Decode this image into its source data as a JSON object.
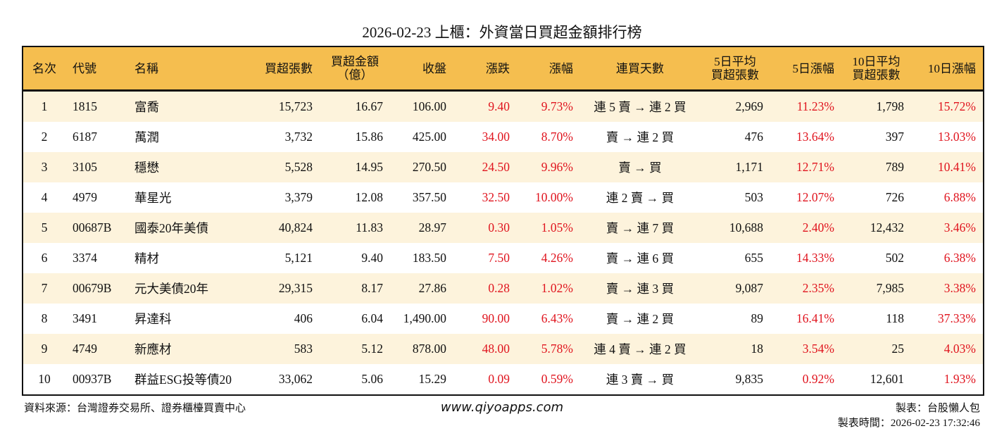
{
  "title": "2026-02-23 上櫃：外資當日買超金額排行榜",
  "colors": {
    "header_bg": "#F5BE4F",
    "row_alt_bg": "#FDF3DC",
    "positive": "#E0141E"
  },
  "headers": [
    "名次",
    "代號",
    "名稱",
    "買超張數",
    "買超金額\n（億）",
    "收盤",
    "漲跌",
    "漲幅",
    "連買天數",
    "5日平均\n買超張數",
    "5日漲幅",
    "10日平均\n買超張數",
    "10日漲幅"
  ],
  "rows": [
    [
      "1",
      "1815",
      "富喬",
      "15,723",
      "16.67",
      "106.00",
      "9.40",
      "9.73%",
      "連 5 賣 → 連 2 買",
      "2,969",
      "11.23%",
      "1,798",
      "15.72%"
    ],
    [
      "2",
      "6187",
      "萬潤",
      "3,732",
      "15.86",
      "425.00",
      "34.00",
      "8.70%",
      "賣 → 連 2 買",
      "476",
      "13.64%",
      "397",
      "13.03%"
    ],
    [
      "3",
      "3105",
      "穩懋",
      "5,528",
      "14.95",
      "270.50",
      "24.50",
      "9.96%",
      "賣 → 買",
      "1,171",
      "12.71%",
      "789",
      "10.41%"
    ],
    [
      "4",
      "4979",
      "華星光",
      "3,379",
      "12.08",
      "357.50",
      "32.50",
      "10.00%",
      "連 2 賣 → 買",
      "503",
      "12.07%",
      "726",
      "6.88%"
    ],
    [
      "5",
      "00687B",
      "國泰20年美債",
      "40,824",
      "11.83",
      "28.97",
      "0.30",
      "1.05%",
      "賣 → 連 7 買",
      "10,688",
      "2.40%",
      "12,432",
      "3.46%"
    ],
    [
      "6",
      "3374",
      "精材",
      "5,121",
      "9.40",
      "183.50",
      "7.50",
      "4.26%",
      "賣 → 連 6 買",
      "655",
      "14.33%",
      "502",
      "6.38%"
    ],
    [
      "7",
      "00679B",
      "元大美債20年",
      "29,315",
      "8.17",
      "27.86",
      "0.28",
      "1.02%",
      "賣 → 連 3 買",
      "9,087",
      "2.35%",
      "7,985",
      "3.38%"
    ],
    [
      "8",
      "3491",
      "昇達科",
      "406",
      "6.04",
      "1,490.00",
      "90.00",
      "6.43%",
      "賣 → 連 2 買",
      "89",
      "16.41%",
      "118",
      "37.33%"
    ],
    [
      "9",
      "4749",
      "新應材",
      "583",
      "5.12",
      "878.00",
      "48.00",
      "5.78%",
      "連 4 賣 → 連 2 買",
      "18",
      "3.54%",
      "25",
      "4.03%"
    ],
    [
      "10",
      "00937B",
      "群益ESG投等債20",
      "33,062",
      "5.06",
      "15.29",
      "0.09",
      "0.59%",
      "連 3 賣 → 買",
      "9,835",
      "0.92%",
      "12,601",
      "1.93%"
    ]
  ],
  "footer": {
    "source": "資料來源：台灣證券交易所、證券櫃檯買賣中心",
    "website": "www.qiyoapps.com",
    "author": "製表：台股懶人包",
    "time": "製表時間：2026-02-23 17:32:46"
  }
}
